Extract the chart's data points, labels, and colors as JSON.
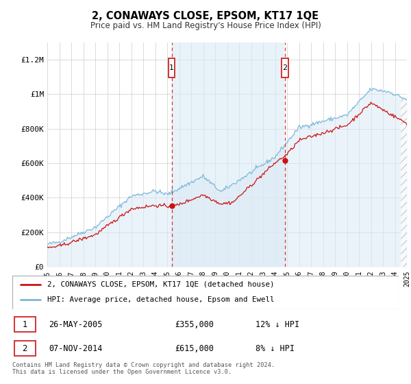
{
  "title": "2, CONAWAYS CLOSE, EPSOM, KT17 1QE",
  "subtitle": "Price paid vs. HM Land Registry's House Price Index (HPI)",
  "ylim": [
    0,
    1300000
  ],
  "yticks": [
    0,
    200000,
    400000,
    600000,
    800000,
    1000000,
    1200000
  ],
  "ytick_labels": [
    "£0",
    "£200K",
    "£400K",
    "£600K",
    "£800K",
    "£1M",
    "£1.2M"
  ],
  "hpi_color": "#7ab8d9",
  "hpi_fill_color": "#daeaf5",
  "shade_fill_color": "#daeaf5",
  "price_color": "#cc1111",
  "grid_color": "#cccccc",
  "sale1_year": 2005.38,
  "sale1_price": 355000,
  "sale2_year": 2014.83,
  "sale2_price": 615000,
  "marker_box_color": "#cc1111",
  "legend_line1": "2, CONAWAYS CLOSE, EPSOM, KT17 1QE (detached house)",
  "legend_line2": "HPI: Average price, detached house, Epsom and Ewell",
  "footer": "Contains HM Land Registry data © Crown copyright and database right 2024.\nThis data is licensed under the Open Government Licence v3.0.",
  "background_color": "#ffffff"
}
